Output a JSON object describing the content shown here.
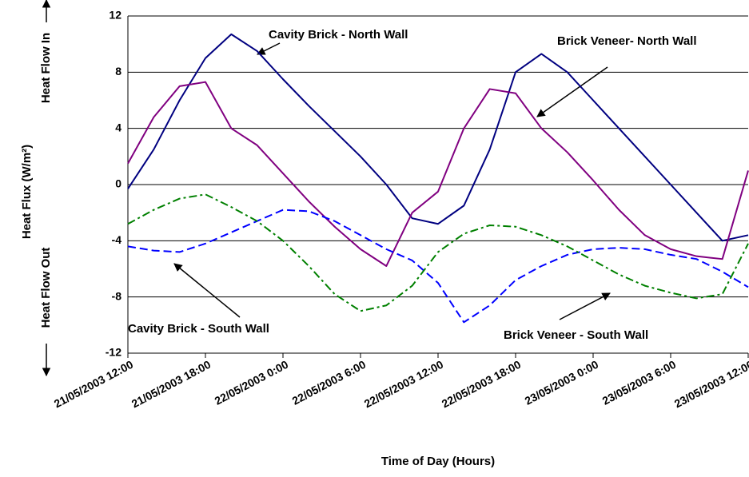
{
  "chart_data": {
    "type": "line",
    "y_label": "Heat Flux (W/m²)",
    "y_label_in": "Heat Flow In",
    "y_label_out": "Heat Flow Out",
    "x_label": "Time of Day (Hours)",
    "x": [
      "21/05/2003 12:00",
      "21/05/2003 14:00",
      "21/05/2003 16:00",
      "21/05/2003 18:00",
      "21/05/2003 20:00",
      "21/05/2003 22:00",
      "22/05/2003 0:00",
      "22/05/2003 2:00",
      "22/05/2003 4:00",
      "22/05/2003 6:00",
      "22/05/2003 8:00",
      "22/05/2003 10:00",
      "22/05/2003 12:00",
      "22/05/2003 14:00",
      "22/05/2003 16:00",
      "22/05/2003 18:00",
      "22/05/2003 20:00",
      "22/05/2003 22:00",
      "23/05/2003 0:00",
      "23/05/2003 2:00",
      "23/05/2003 4:00",
      "23/05/2003 6:00",
      "23/05/2003 8:00",
      "23/05/2003 10:00",
      "23/05/2003 12:00"
    ],
    "series": [
      {
        "name": "Cavity Brick - North Wall",
        "color": "#000080",
        "dash": "solid",
        "values": [
          -0.3,
          2.5,
          6,
          9,
          10.7,
          9.5,
          7.5,
          5.6,
          3.8,
          2,
          0,
          -2.4,
          -2.8,
          -1.5,
          2.5,
          8,
          9.3,
          8,
          6,
          4,
          2,
          0,
          -2,
          -4,
          -3.6
        ]
      },
      {
        "name": "Brick Veneer- North Wall",
        "color": "#800080",
        "dash": "solid",
        "values": [
          1.5,
          4.8,
          7,
          7.3,
          4,
          2.8,
          0.8,
          -1.2,
          -3,
          -4.6,
          -5.8,
          -2,
          -0.5,
          4,
          6.8,
          6.5,
          4,
          2.3,
          0.3,
          -1.8,
          -3.6,
          -4.6,
          -5.1,
          -5.3,
          1
        ]
      },
      {
        "name": "Cavity Brick - South Wall",
        "color": "#0000ff",
        "dash": "dash",
        "values": [
          -4.4,
          -4.7,
          -4.8,
          -4.2,
          -3.4,
          -2.6,
          -1.8,
          -1.9,
          -2.6,
          -3.6,
          -4.6,
          -5.4,
          -7,
          -9.8,
          -8.6,
          -6.8,
          -5.8,
          -5,
          -4.6,
          -4.5,
          -4.6,
          -5,
          -5.3,
          -6.2,
          -7.3
        ]
      },
      {
        "name": "Brick Veneer - South Wall",
        "color": "#008000",
        "dash": "dashdot",
        "values": [
          -2.8,
          -1.8,
          -1,
          -0.7,
          -1.6,
          -2.6,
          -4,
          -5.8,
          -7.8,
          -9,
          -8.6,
          -7.2,
          -4.8,
          -3.5,
          -2.9,
          -3,
          -3.6,
          -4.4,
          -5.4,
          -6.4,
          -7.2,
          -7.7,
          -8.1,
          -7.8,
          -4.2
        ]
      }
    ],
    "xlim": [
      "21/05/2003 12:00",
      "23/05/2003 12:00"
    ],
    "xticks": [
      "21/05/2003 12:00",
      "21/05/2003 18:00",
      "22/05/2003 0:00",
      "22/05/2003 6:00",
      "22/05/2003 12:00",
      "22/05/2003 18:00",
      "23/05/2003 0:00",
      "23/05/2003 6:00",
      "23/05/2003 12:00"
    ],
    "ylim": [
      -12,
      12
    ],
    "yticks": [
      12,
      8,
      4,
      0,
      -4,
      -8,
      -12
    ],
    "grid": true
  }
}
